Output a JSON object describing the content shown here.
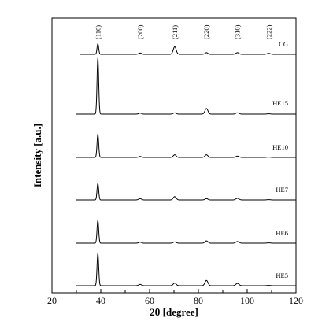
{
  "chart_data": {
    "type": "line",
    "xlabel": "2θ [degree]",
    "ylabel": "Intensity [a.u.]",
    "xlim": [
      20,
      120
    ],
    "xticks": [
      20,
      40,
      60,
      80,
      100,
      120
    ],
    "peaks": [
      {
        "label": "(110)",
        "x": 38.8
      },
      {
        "label": "(200)",
        "x": 56.1
      },
      {
        "label": "(211)",
        "x": 70.3
      },
      {
        "label": "(220)",
        "x": 83.3
      },
      {
        "label": "(310)",
        "x": 96.0
      },
      {
        "label": "(222)",
        "x": 108.8
      }
    ],
    "series": [
      {
        "name": "CG",
        "intensities": [
          0.32,
          0.04,
          0.23,
          0.05,
          0.05,
          0.03
        ]
      },
      {
        "name": "HE15",
        "intensities": [
          1.7,
          0.03,
          0.04,
          0.17,
          0.04,
          0.01
        ]
      },
      {
        "name": "HE10",
        "intensities": [
          0.7,
          0.03,
          0.08,
          0.08,
          0.04,
          0.01
        ]
      },
      {
        "name": "HE7",
        "intensities": [
          0.5,
          0.04,
          0.1,
          0.04,
          0.05,
          0.01
        ]
      },
      {
        "name": "HE6",
        "intensities": [
          0.69,
          0.03,
          0.04,
          0.07,
          0.05,
          0.01
        ]
      },
      {
        "name": "HE5",
        "intensities": [
          0.98,
          0.04,
          0.08,
          0.16,
          0.07,
          0.01
        ]
      }
    ]
  }
}
